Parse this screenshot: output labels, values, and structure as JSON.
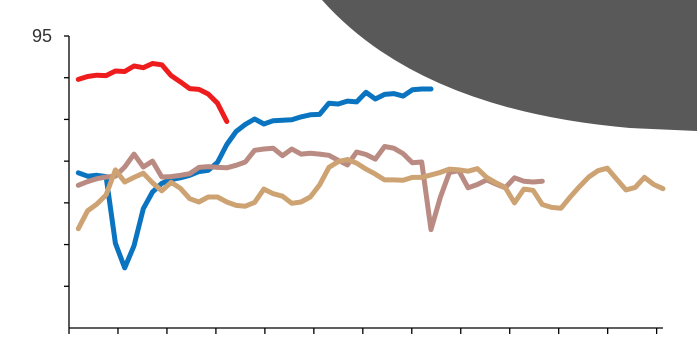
{
  "chart_data": {
    "type": "line",
    "title": "",
    "xlabel": "",
    "ylabel": "",
    "grid": false,
    "legend": "none",
    "ylim": [
      25,
      95
    ],
    "y_tick_labels": [
      {
        "value": 95,
        "label": "95"
      }
    ],
    "x": [
      1,
      2,
      3,
      4,
      5,
      6,
      7,
      8,
      9,
      10,
      11,
      12,
      13,
      14,
      15,
      16,
      17,
      18,
      19,
      20,
      21,
      22,
      23,
      24,
      25,
      26,
      27,
      28,
      29,
      30,
      31,
      32,
      33,
      34,
      35,
      36,
      37,
      38,
      39,
      40,
      41,
      42,
      43,
      44,
      45,
      46,
      47,
      48,
      49,
      50,
      51,
      52,
      53,
      54,
      55,
      56,
      57,
      58,
      59,
      60,
      61,
      62,
      63,
      64
    ],
    "xlim": [
      0,
      64
    ],
    "x_tick_count": 13,
    "series": [
      {
        "color": "#ee1c1c",
        "values": [
          84.6,
          85.3,
          85.6,
          85.5,
          86.6,
          86.5,
          87.8,
          87.4,
          88.4,
          88.1,
          85.5,
          84.0,
          82.4,
          82.2,
          81.1,
          78.9,
          74.5,
          null,
          null,
          null,
          null,
          null,
          null,
          null,
          null,
          null,
          null,
          null,
          null,
          null,
          null,
          null,
          null,
          null,
          null,
          null,
          null,
          null,
          null,
          null,
          null,
          null,
          null,
          null,
          null,
          null,
          null,
          null,
          null,
          null,
          null,
          null,
          null,
          null,
          null,
          null,
          null,
          null,
          null,
          null,
          null,
          null,
          null,
          null
        ]
      },
      {
        "color": "#0a74c1",
        "values": [
          62.2,
          61.4,
          61.6,
          61.3,
          45.3,
          39.4,
          44.7,
          53.6,
          57.6,
          59.7,
          60.6,
          61.0,
          61.6,
          62.5,
          62.8,
          64.7,
          69.0,
          72.1,
          73.8,
          75.1,
          73.9,
          74.7,
          74.8,
          74.9,
          75.6,
          76.1,
          76.2,
          78.9,
          78.7,
          79.4,
          79.2,
          81.5,
          79.9,
          81.0,
          81.2,
          80.6,
          82.1,
          82.3,
          82.3,
          null,
          null,
          null,
          null,
          null,
          null,
          null,
          null,
          null,
          null,
          null,
          null,
          null,
          null,
          null,
          null,
          null,
          null,
          null,
          null,
          null,
          null,
          null,
          null,
          null
        ]
      },
      {
        "color": "#b98b82",
        "values": [
          59.2,
          60.1,
          60.8,
          61.2,
          61.4,
          63.6,
          66.7,
          63.6,
          65.0,
          61.2,
          61.3,
          61.6,
          62.0,
          63.5,
          63.7,
          63.5,
          63.4,
          64.0,
          64.8,
          67.6,
          67.9,
          68.1,
          66.3,
          67.9,
          66.7,
          66.9,
          66.7,
          66.4,
          65.2,
          64.1,
          67.2,
          66.6,
          65.5,
          68.5,
          68.1,
          66.8,
          64.6,
          64.8,
          48.6,
          56.3,
          62.3,
          62.7,
          58.6,
          59.4,
          60.5,
          59.5,
          58.6,
          61.0,
          60.2,
          60.0,
          60.2,
          null,
          null,
          null,
          null,
          null,
          null,
          null,
          null,
          null,
          null,
          null,
          null,
          null
        ]
      },
      {
        "color": "#cda373",
        "values": [
          48.8,
          53.1,
          54.7,
          56.9,
          62.9,
          60.0,
          61.1,
          62.1,
          59.8,
          57.9,
          59.9,
          58.5,
          56.0,
          55.2,
          56.4,
          56.4,
          55.2,
          54.4,
          54.2,
          55.1,
          58.3,
          57.2,
          56.6,
          54.9,
          55.2,
          56.4,
          59.3,
          63.5,
          64.9,
          65.4,
          64.5,
          63.1,
          61.9,
          60.5,
          60.5,
          60.4,
          61.1,
          61.1,
          61.7,
          62.3,
          63.1,
          62.9,
          62.6,
          63.2,
          61.1,
          59.8,
          58.7,
          55.0,
          58.3,
          58.0,
          54.6,
          53.9,
          53.7,
          56.4,
          58.9,
          61.2,
          62.7,
          63.3,
          60.7,
          58.1,
          58.7,
          61.1,
          59.4,
          58.4
        ]
      }
    ]
  }
}
